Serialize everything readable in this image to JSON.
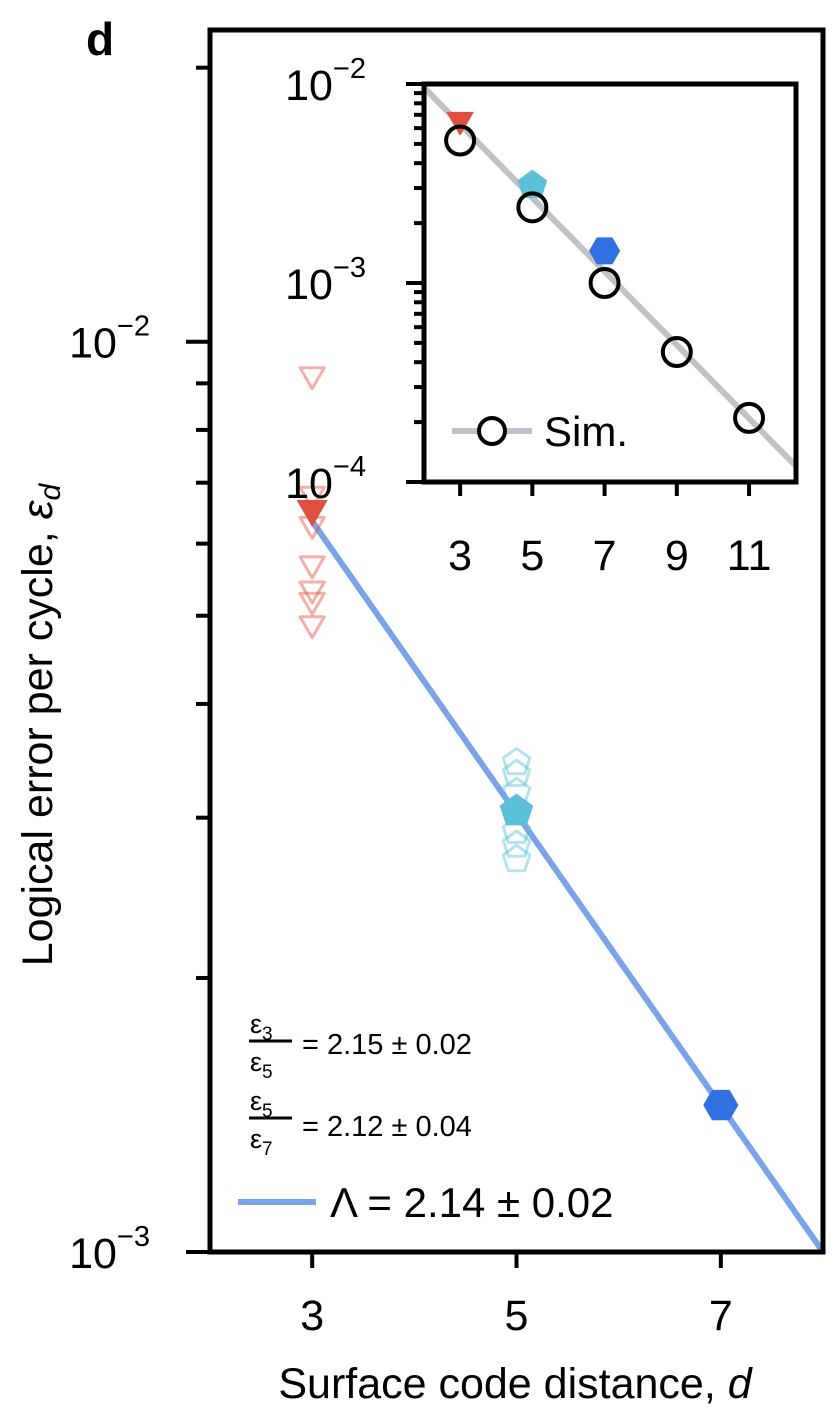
{
  "panel_letter": "d",
  "chart_data": [
    {
      "type": "scatter",
      "yscale": "log",
      "xlabel": "Surface code distance, ",
      "xlabel_var": "d",
      "ylabel": "Logical error per cycle, ",
      "ylabel_var": "ε",
      "ylabel_sub": "d",
      "xlim": [
        2,
        8
      ],
      "ylim": [
        0.001,
        0.022
      ],
      "xticks": [
        3,
        5,
        7
      ],
      "yticks_major": [
        0.001,
        0.01
      ],
      "ytick_labels": [
        {
          "base": "10",
          "exp": "−3"
        },
        {
          "base": "10",
          "exp": "−2"
        }
      ],
      "series": [
        {
          "distance": 3,
          "marker": "triangle-down",
          "color": "#e05040",
          "value": 0.00655,
          "individual_values": [
            0.0092,
            0.0068,
            0.0063,
            0.0057,
            0.00535,
            0.0052,
            0.0049
          ]
        },
        {
          "distance": 5,
          "marker": "pentagon",
          "color": "#5bc0d8",
          "value": 0.00305,
          "individual_values": [
            0.00345,
            0.00335,
            0.0032,
            0.0029,
            0.0028,
            0.0027
          ]
        },
        {
          "distance": 7,
          "marker": "hexagon",
          "color": "#3070e0",
          "value": 0.00145,
          "individual_values": []
        }
      ],
      "fit": {
        "color": "#7aa3ea",
        "x": [
          3,
          8
        ],
        "y": [
          0.00635,
          0.001
        ]
      },
      "annotations": [
        {
          "num": "ε",
          "num_sub": "3",
          "den": "ε",
          "den_sub": "5",
          "text": "= 2.15 ± 0.02"
        },
        {
          "num": "ε",
          "num_sub": "5",
          "den": "ε",
          "den_sub": "7",
          "text": "= 2.12 ± 0.04"
        }
      ],
      "legend": {
        "label": "Λ = 2.14 ± 0.02",
        "placement": "bottom-left"
      }
    },
    {
      "type": "scatter",
      "yscale": "log",
      "xlim": [
        2,
        12.3
      ],
      "ylim": [
        0.0001,
        0.01
      ],
      "xticks": [
        3,
        5,
        7,
        9,
        11
      ],
      "ytick_labels": [
        {
          "base": "10",
          "exp": "−4"
        },
        {
          "base": "10",
          "exp": "−3"
        },
        {
          "base": "10",
          "exp": "−2"
        }
      ],
      "experiment": [
        {
          "distance": 3,
          "marker": "triangle-down",
          "color": "#e05040",
          "value": 0.0066
        },
        {
          "distance": 5,
          "marker": "pentagon",
          "color": "#5bc0d8",
          "value": 0.0031
        },
        {
          "distance": 7,
          "marker": "hexagon",
          "color": "#3070e0",
          "value": 0.00145
        }
      ],
      "simulation": {
        "name": "Sim.",
        "distance": [
          3,
          5,
          7,
          9,
          11
        ],
        "values": [
          0.0052,
          0.0024,
          0.001,
          0.00045,
          0.00021
        ]
      },
      "sim_line": {
        "color": "#c0c2c8",
        "x": [
          2,
          12.3
        ],
        "y": [
          0.0096,
          0.00012
        ]
      },
      "legend": {
        "placement": "bottom-left"
      }
    }
  ]
}
